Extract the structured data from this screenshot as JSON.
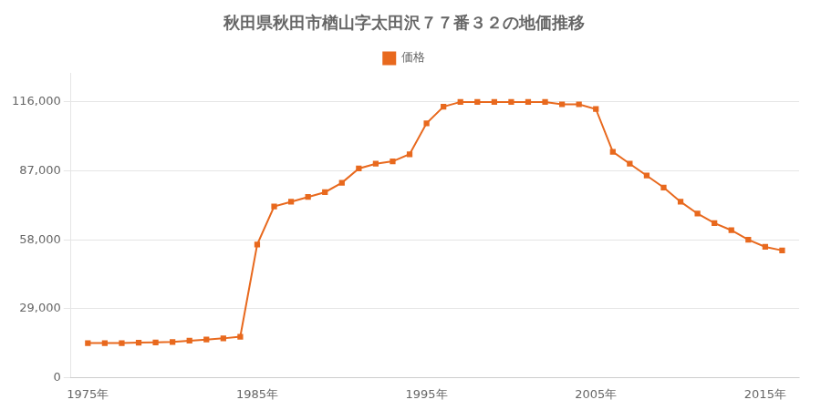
{
  "chart_data": {
    "type": "line",
    "title": "秋田県秋田市楢山字太田沢７７番３２の地価推移",
    "x": [
      1975,
      1976,
      1977,
      1978,
      1979,
      1980,
      1981,
      1982,
      1983,
      1984,
      1985,
      1986,
      1987,
      1988,
      1989,
      1990,
      1991,
      1992,
      1993,
      1994,
      1995,
      1996,
      1997,
      1998,
      1999,
      2000,
      2001,
      2002,
      2003,
      2004,
      2005,
      2006,
      2007,
      2008,
      2009,
      2010,
      2011,
      2012,
      2013,
      2014,
      2015,
      2016
    ],
    "series": [
      {
        "name": "価格",
        "color": "#e8691e",
        "marker": "square",
        "values": [
          14500,
          14500,
          14500,
          14700,
          14800,
          15000,
          15500,
          16000,
          16500,
          17200,
          56000,
          72000,
          74000,
          76000,
          78000,
          82000,
          88000,
          90000,
          91000,
          94000,
          107000,
          114000,
          116000,
          116000,
          116000,
          116000,
          116000,
          116000,
          115000,
          115000,
          113000,
          95000,
          90000,
          85000,
          80000,
          74000,
          69000,
          65000,
          62000,
          58000,
          55000,
          53500
        ]
      }
    ],
    "xlim": [
      1974,
      2017
    ],
    "xticks": [
      {
        "value": 1975,
        "label": "1975年"
      },
      {
        "value": 1985,
        "label": "1985年"
      },
      {
        "value": 1995,
        "label": "1995年"
      },
      {
        "value": 2005,
        "label": "2005年"
      },
      {
        "value": 2015,
        "label": "2015年"
      }
    ],
    "ylim": [
      0,
      128000
    ],
    "yticks": [
      0,
      {
        "value": 29000,
        "label": "29,000"
      },
      {
        "value": 58000,
        "label": "58,000"
      },
      {
        "value": 87000,
        "label": "87,000"
      },
      {
        "value": 116000,
        "label": "116,000"
      }
    ],
    "grid": "y",
    "legend": "top"
  }
}
